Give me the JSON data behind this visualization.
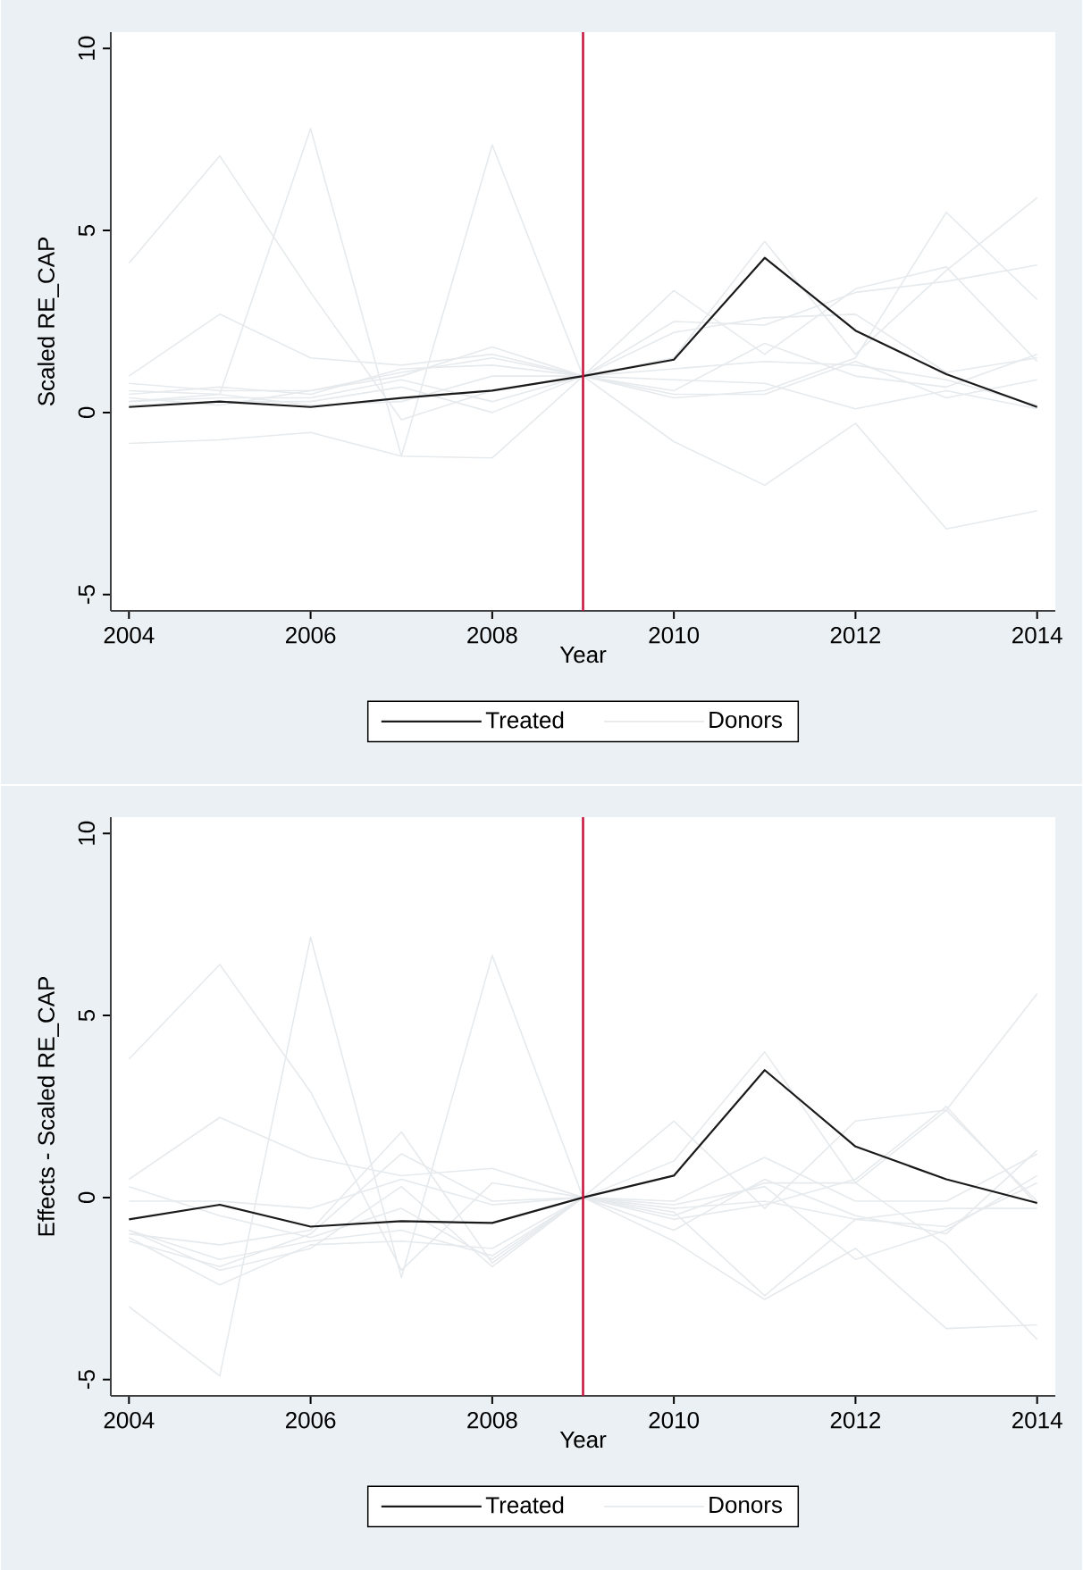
{
  "chart_data": [
    {
      "type": "line",
      "xlabel": "Year",
      "ylabel": "Scaled RE_CAP",
      "x": [
        2004,
        2005,
        2006,
        2007,
        2008,
        2009,
        2010,
        2011,
        2012,
        2013,
        2014
      ],
      "xlim": [
        2003.8,
        2014.2
      ],
      "ylim": [
        -5.45,
        10.45
      ],
      "xticks": [
        2004,
        2006,
        2008,
        2010,
        2012,
        2014
      ],
      "yticks": [
        -5,
        0,
        5,
        10
      ],
      "legend": "bottom",
      "line_style": "solid",
      "ref_lines": [
        {
          "axis": "x",
          "value": 2009,
          "color": "#c8103c"
        }
      ],
      "series": [
        {
          "name": "Treated",
          "color": "#1a1a1a",
          "values": [
            0.15,
            0.3,
            0.15,
            0.4,
            0.6,
            1,
            1.45,
            4.25,
            2.25,
            1.05,
            0.15
          ]
        },
        {
          "name": "Donors",
          "color": "#e6eaed",
          "values": [
            4.1,
            7.05,
            3.3,
            -0.2,
            0.6,
            1,
            0.4,
            0.6,
            1.5,
            5.5,
            3.1
          ]
        },
        {
          "color": "#e6eaed",
          "values": [
            0.3,
            0.5,
            7.8,
            -1.2,
            7.35,
            1,
            -0.8,
            -2.0,
            -0.3,
            -3.2,
            -2.7
          ]
        },
        {
          "color": "#e6eaed",
          "values": [
            -0.85,
            -0.75,
            -0.55,
            -1.2,
            -1.25,
            1,
            3.35,
            1.6,
            3.4,
            4.0,
            1.4
          ]
        },
        {
          "color": "#e6eaed",
          "values": [
            1.0,
            2.7,
            1.5,
            1.3,
            1.6,
            1,
            2.5,
            2.4,
            3.3,
            3.6,
            4.05
          ]
        },
        {
          "color": "#e6eaed",
          "values": [
            0.8,
            0.6,
            0.6,
            1.0,
            1.8,
            1,
            1.5,
            4.7,
            1.6,
            3.9,
            5.9
          ]
        },
        {
          "color": "#e6eaed",
          "values": [
            0.5,
            0.7,
            0.5,
            1.2,
            1.3,
            1,
            0.6,
            1.9,
            1.0,
            0.7,
            1.6
          ]
        },
        {
          "color": "#e6eaed",
          "values": [
            0.3,
            0.4,
            0.4,
            0.9,
            0.3,
            1,
            0.5,
            0.5,
            1.4,
            0.4,
            0.9
          ]
        },
        {
          "color": "#e6eaed",
          "values": [
            0.2,
            0.3,
            0.3,
            0.7,
            0.0,
            1,
            1.2,
            1.4,
            1.3,
            0.9,
            0.2
          ]
        },
        {
          "color": "#e6eaed",
          "values": [
            0.6,
            0.5,
            0.2,
            0.3,
            1.0,
            1,
            0.9,
            0.8,
            0.1,
            0.6,
            0.1
          ]
        },
        {
          "color": "#e6eaed",
          "values": [
            0.4,
            0.2,
            0.6,
            1.1,
            1.5,
            1,
            2.2,
            2.6,
            2.7,
            1.1,
            1.5
          ]
        }
      ]
    },
    {
      "type": "line",
      "xlabel": "Year",
      "ylabel": "Effects - Scaled RE_CAP",
      "x": [
        2004,
        2005,
        2006,
        2007,
        2008,
        2009,
        2010,
        2011,
        2012,
        2013,
        2014
      ],
      "xlim": [
        2003.8,
        2014.2
      ],
      "ylim": [
        -5.45,
        10.45
      ],
      "xticks": [
        2004,
        2006,
        2008,
        2010,
        2012,
        2014
      ],
      "yticks": [
        -5,
        0,
        5,
        10
      ],
      "legend": "bottom",
      "line_style": "solid",
      "ref_lines": [
        {
          "axis": "x",
          "value": 2009,
          "color": "#c8103c"
        }
      ],
      "series": [
        {
          "name": "Treated",
          "color": "#1a1a1a",
          "values": [
            -0.6,
            -0.2,
            -0.8,
            -0.65,
            -0.7,
            0,
            0.6,
            3.5,
            1.4,
            0.5,
            -0.15
          ]
        },
        {
          "name": "Donors",
          "color": "#e6eaed",
          "values": [
            3.8,
            6.4,
            2.9,
            -2.0,
            0.4,
            0,
            -0.6,
            -0.2,
            0.5,
            2.5,
            -0.2
          ]
        },
        {
          "color": "#e6eaed",
          "values": [
            -3.0,
            -4.9,
            7.15,
            -2.2,
            6.65,
            0,
            -1.2,
            -2.8,
            -1.4,
            -3.6,
            -3.5
          ]
        },
        {
          "color": "#e6eaed",
          "values": [
            -1.0,
            -1.3,
            -0.9,
            1.8,
            -1.8,
            0,
            2.1,
            -0.3,
            2.1,
            2.4,
            -0.1
          ]
        },
        {
          "color": "#e6eaed",
          "values": [
            0.5,
            2.2,
            1.1,
            0.6,
            0.8,
            0,
            -0.5,
            0.4,
            0.4,
            -1.3,
            -3.9
          ]
        },
        {
          "color": "#e6eaed",
          "values": [
            -0.9,
            -1.7,
            -1.2,
            -0.9,
            -1.6,
            0,
            1.0,
            4.0,
            0.4,
            2.4,
            5.6
          ]
        },
        {
          "color": "#e6eaed",
          "values": [
            -0.1,
            -0.1,
            -0.3,
            0.5,
            -0.2,
            0,
            -0.9,
            0.5,
            -0.5,
            -1.0,
            1.3
          ]
        },
        {
          "color": "#e6eaed",
          "values": [
            0.3,
            -0.5,
            -1.1,
            -0.3,
            -1.7,
            0,
            -0.3,
            -0.1,
            -0.6,
            -0.8,
            0.4
          ]
        },
        {
          "color": "#e6eaed",
          "values": [
            -1.1,
            -2.4,
            -1.3,
            -1.2,
            -1.4,
            0,
            -0.4,
            -2.7,
            -0.6,
            -0.3,
            -0.3
          ]
        },
        {
          "color": "#e6eaed",
          "values": [
            -1.2,
            -1.9,
            -1.0,
            1.2,
            -0.1,
            0,
            -0.2,
            0.3,
            -1.7,
            -0.9,
            0.6
          ]
        },
        {
          "color": "#e6eaed",
          "values": [
            -0.9,
            -2.0,
            -1.4,
            0.3,
            -1.9,
            0,
            -0.1,
            1.1,
            -0.1,
            -0.1,
            1.2
          ]
        }
      ]
    }
  ]
}
